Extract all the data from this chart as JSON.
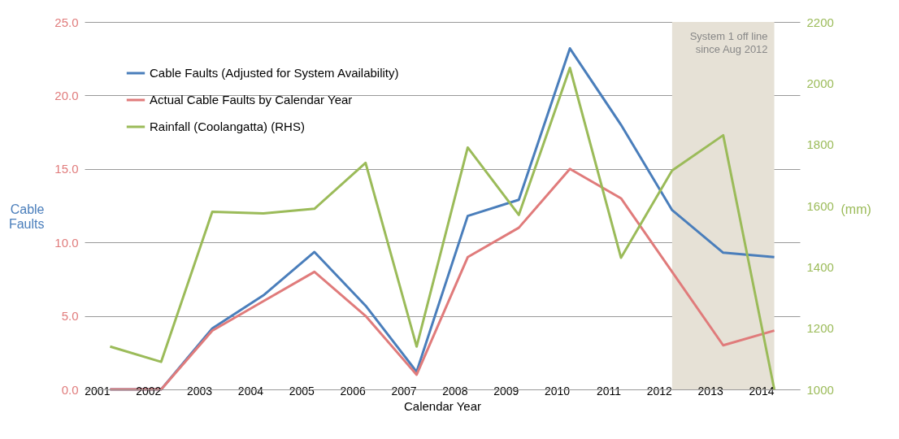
{
  "chart_data": {
    "type": "line",
    "xlabel": "Calendar Year",
    "ylabel": "Cable Faults",
    "y2label": "(mm)",
    "categories": [
      "2001",
      "2002",
      "2003",
      "2004",
      "2005",
      "2006",
      "2007",
      "2008",
      "2009",
      "2010",
      "2011",
      "2012",
      "2013",
      "2014"
    ],
    "series": [
      {
        "name": "Cable Faults (Adjusted for System Availability)",
        "color": "#4a7ebb",
        "values": [
          0,
          0,
          4.15,
          6.4,
          9.35,
          5.7,
          1.2,
          11.8,
          12.9,
          23.2,
          18.0,
          12.2,
          9.3,
          9.0
        ]
      },
      {
        "name": "Actual Cable Faults by Calendar Year",
        "color": "#e07b7b",
        "values": [
          0,
          0,
          4.0,
          6.0,
          8.0,
          5.0,
          1.0,
          9.0,
          11.0,
          15.0,
          13.0,
          8.0,
          3.0,
          4.0
        ]
      },
      {
        "name": "Rainfall (Coolangatta) (RHS)",
        "color": "#9bbb59",
        "axis": "y2",
        "values": [
          1140,
          1090,
          1580,
          1575,
          1590,
          1740,
          1140,
          1790,
          1570,
          2050,
          1430,
          1715,
          1830,
          1000
        ]
      }
    ],
    "ylim": [
      0,
      25
    ],
    "yticks": [
      {
        "value": 0,
        "label": "0.0"
      },
      {
        "value": 5,
        "label": "5.0"
      },
      {
        "value": 10,
        "label": "10.0"
      },
      {
        "value": 15,
        "label": "15.0"
      },
      {
        "value": 20,
        "label": "20.0"
      },
      {
        "value": 25,
        "label": "25.0"
      }
    ],
    "y2lim": [
      1000,
      2200
    ],
    "y2ticks": [
      1000,
      1200,
      1400,
      1600,
      1800,
      2000,
      2200
    ],
    "bands": [
      {
        "axis": "x",
        "from": "2012",
        "to": "2014",
        "label": "System 1 off line since Aug 2012",
        "color": "#e6e1d6"
      }
    ],
    "grid": "y",
    "legend": "top left",
    "line_style": "solid"
  }
}
